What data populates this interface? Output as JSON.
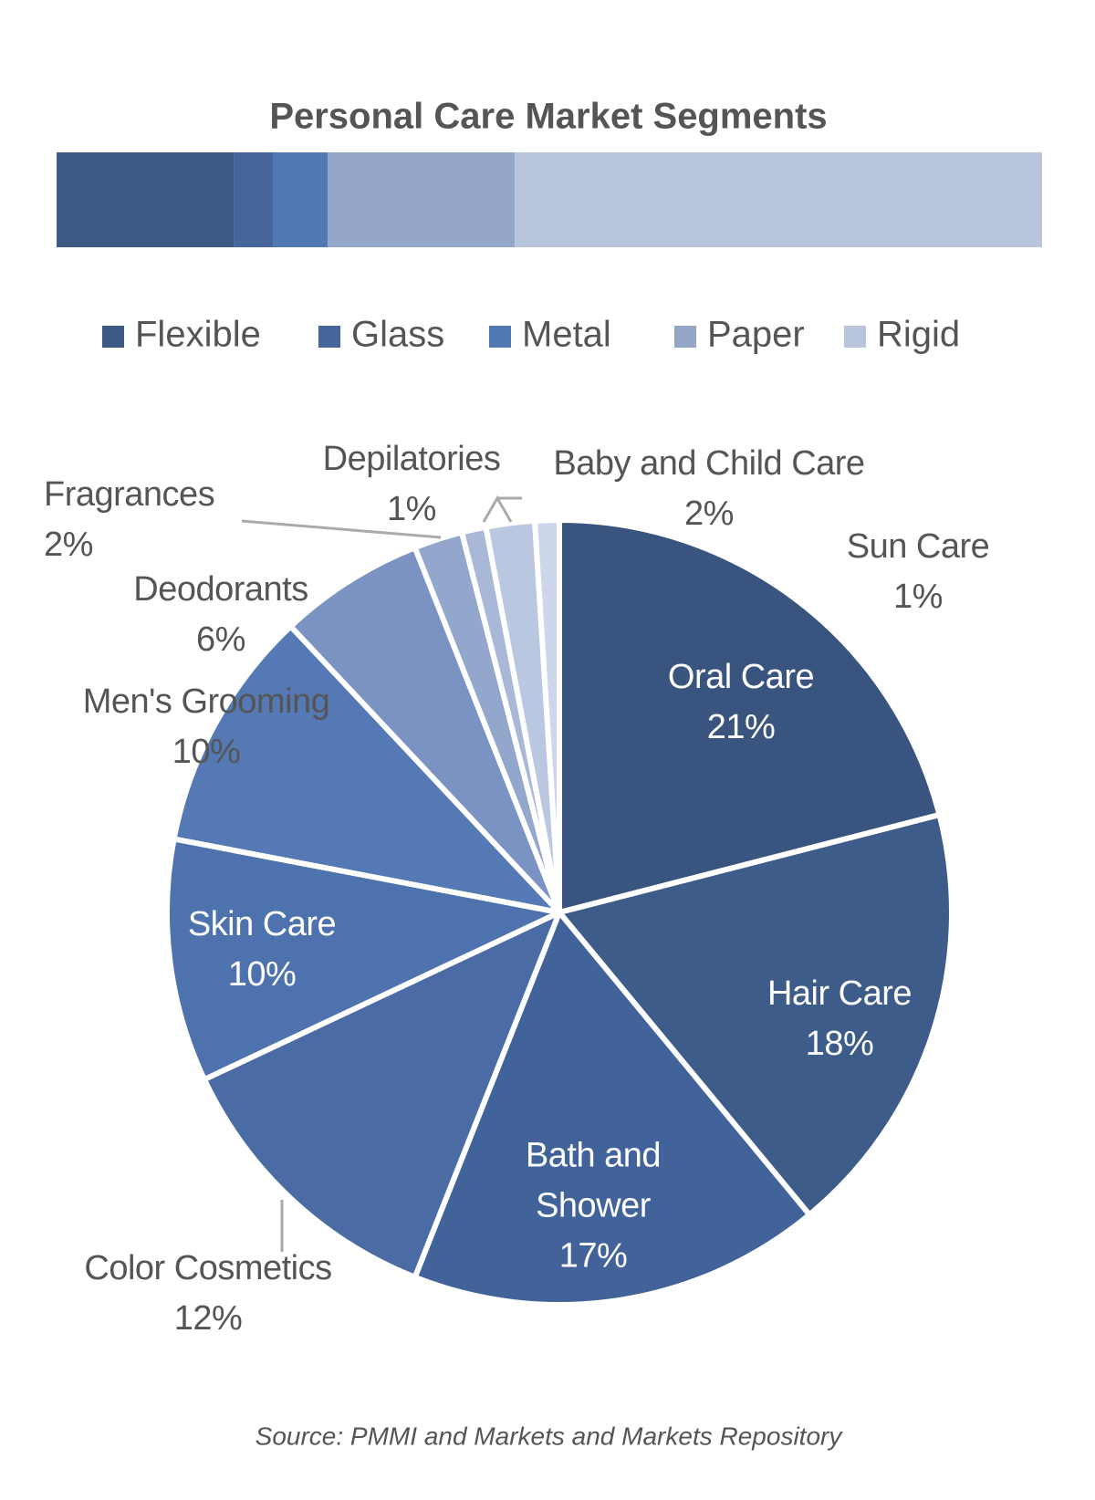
{
  "chart_data": [
    {
      "type": "stacked-bar",
      "title": "Personal Care Market Segments",
      "xlim": [
        0,
        100
      ],
      "series": [
        {
          "name": "Flexible",
          "color": "#3d5a85",
          "values": [
            18
          ]
        },
        {
          "name": "Glass",
          "color": "#46659a",
          "values": [
            4
          ]
        },
        {
          "name": "Metal",
          "color": "#5078b3",
          "values": [
            5.5
          ]
        },
        {
          "name": "Paper",
          "color": "#95a7c9",
          "values": [
            19
          ]
        },
        {
          "name": "Rigid",
          "color": "#b9c5dc",
          "values": [
            53.5
          ]
        }
      ]
    },
    {
      "type": "pie",
      "categories": [
        "Oral Care",
        "Hair Care",
        "Bath and Shower",
        "Color Cosmetics",
        "Skin Care",
        "Men's Grooming",
        "Deodorants",
        "Fragrances",
        "Depilatories",
        "Baby and Child Care",
        "Sun Care"
      ],
      "values": [
        21,
        18,
        17,
        12,
        10,
        10,
        6,
        2,
        1,
        2,
        1
      ],
      "value_labels": [
        "21%",
        "18%",
        "17%",
        "12%",
        "10%",
        "10%",
        "6%",
        "2%",
        "1%",
        "2%",
        "1%"
      ],
      "colors": [
        "#3a5480",
        "#3d5c8a",
        "#41639a",
        "#4a6ba3",
        "#4e72ae",
        "#5479b5",
        "#7a93c2",
        "#93a6cb",
        "#a8b8d6",
        "#bac7e0",
        "#cdd6ea"
      ],
      "source": "Source: PMMI and Markets and Markets Repository"
    }
  ]
}
